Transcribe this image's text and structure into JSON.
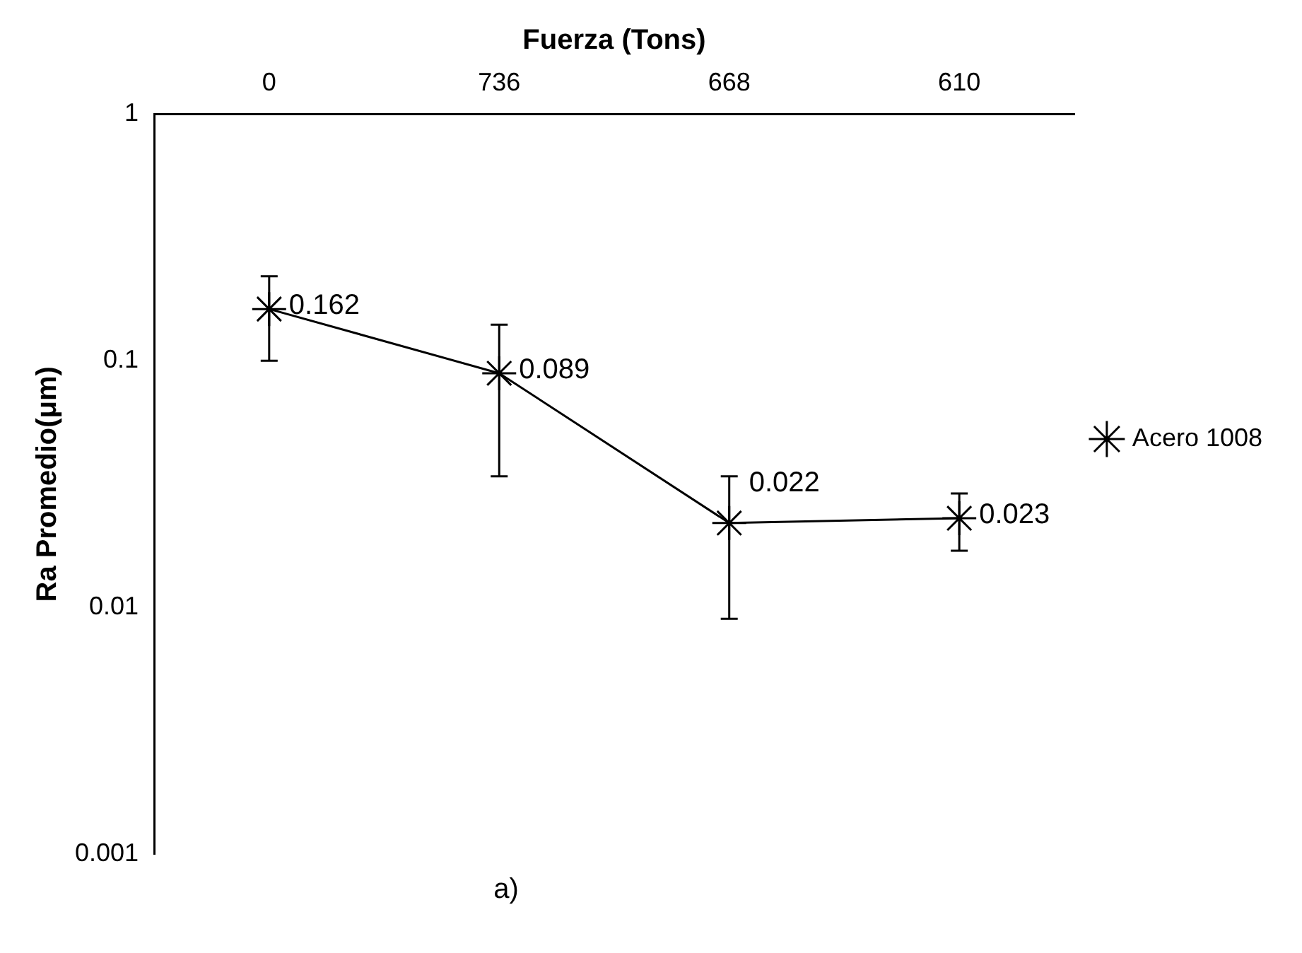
{
  "chart_data": {
    "type": "line",
    "xlabel": "Fuerza (Tons)",
    "ylabel": "Ra Promedio(μm)",
    "categories": [
      "0",
      "736",
      "668",
      "610"
    ],
    "series": [
      {
        "name": "Acero 1008",
        "color": "#000000",
        "values": [
          0.162,
          0.089,
          0.022,
          0.023
        ],
        "errors": [
          [
            0.1,
            0.22
          ],
          [
            0.034,
            0.14
          ],
          [
            0.009,
            0.034
          ],
          [
            0.017,
            0.029
          ]
        ]
      }
    ],
    "log": "y",
    "ylim": [
      0.001,
      1
    ],
    "yticks": [
      0.001,
      0.01,
      0.1,
      1
    ],
    "grid": false,
    "legend": "right",
    "marker": "cross",
    "line_style": "solid",
    "data_labels": true,
    "annotations": [
      "a)"
    ]
  }
}
